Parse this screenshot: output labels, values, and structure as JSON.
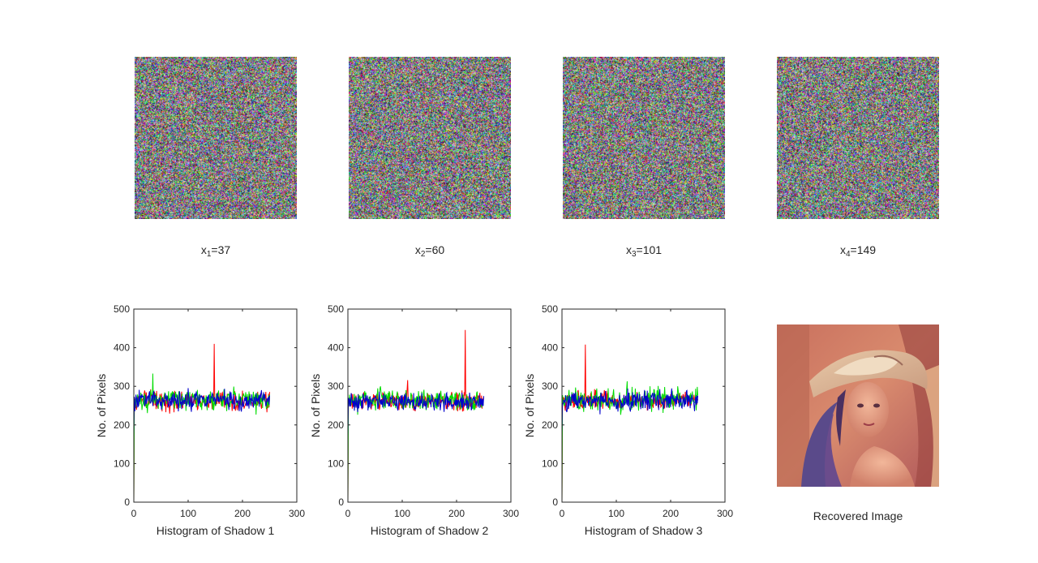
{
  "shares": [
    {
      "var": "x",
      "sub": "1",
      "eq": "=",
      "value": "37"
    },
    {
      "var": "x",
      "sub": "2",
      "eq": "=",
      "value": "60"
    },
    {
      "var": "x",
      "sub": "3",
      "eq": "=",
      "value": "101"
    },
    {
      "var": "x",
      "sub": "4",
      "eq": "=",
      "value": "149"
    }
  ],
  "recovered": {
    "caption": "Recovered Image"
  },
  "chart_data": [
    {
      "type": "line",
      "xlabel": "Histogram of Shadow 1",
      "ylabel": "No. of Pixels",
      "xlim": [
        0,
        300
      ],
      "ylim": [
        0,
        500
      ],
      "xticks": [
        "0",
        "100",
        "200",
        "300"
      ],
      "yticks": [
        "0",
        "100",
        "200",
        "300",
        "400",
        "500"
      ],
      "x_range": [
        0,
        250
      ],
      "series": [
        {
          "color": "#ff0000",
          "baseline": 262,
          "spread": 15,
          "spikes": [
            [
              148,
              410
            ]
          ]
        },
        {
          "color": "#00dd00",
          "baseline": 264,
          "spread": 17,
          "spikes": [
            [
              35,
              333
            ]
          ]
        },
        {
          "color": "#0000cc",
          "baseline": 263,
          "spread": 15,
          "spikes": [
            [
              0,
              175
            ]
          ]
        }
      ]
    },
    {
      "type": "line",
      "xlabel": "Histogram of Shadow 2",
      "ylabel": "No. of Pixels",
      "xlim": [
        0,
        300
      ],
      "ylim": [
        0,
        500
      ],
      "xticks": [
        "0",
        "100",
        "200",
        "300"
      ],
      "yticks": [
        "0",
        "100",
        "200",
        "300",
        "400",
        "500"
      ],
      "x_range": [
        0,
        250
      ],
      "series": [
        {
          "color": "#ff0000",
          "baseline": 262,
          "spread": 15,
          "spikes": [
            [
              216,
              446
            ],
            [
              110,
              316
            ]
          ]
        },
        {
          "color": "#00dd00",
          "baseline": 264,
          "spread": 17,
          "spikes": [
            [
              60,
              300
            ]
          ]
        },
        {
          "color": "#0000cc",
          "baseline": 262,
          "spread": 15,
          "spikes": [
            [
              0,
              170
            ]
          ]
        }
      ]
    },
    {
      "type": "line",
      "xlabel": "Histogram of Shadow 3",
      "ylabel": "No. of Pixels",
      "xlim": [
        0,
        300
      ],
      "ylim": [
        0,
        500
      ],
      "xticks": [
        "0",
        "100",
        "200",
        "300"
      ],
      "yticks": [
        "0",
        "100",
        "200",
        "300",
        "400",
        "500"
      ],
      "x_range": [
        0,
        250
      ],
      "series": [
        {
          "color": "#ff0000",
          "baseline": 263,
          "spread": 15,
          "spikes": [
            [
              43,
              408
            ]
          ]
        },
        {
          "color": "#00dd00",
          "baseline": 265,
          "spread": 17,
          "spikes": [
            [
              120,
              313
            ]
          ]
        },
        {
          "color": "#0000cc",
          "baseline": 263,
          "spread": 15,
          "spikes": [
            [
              0,
              180
            ]
          ]
        }
      ]
    }
  ]
}
